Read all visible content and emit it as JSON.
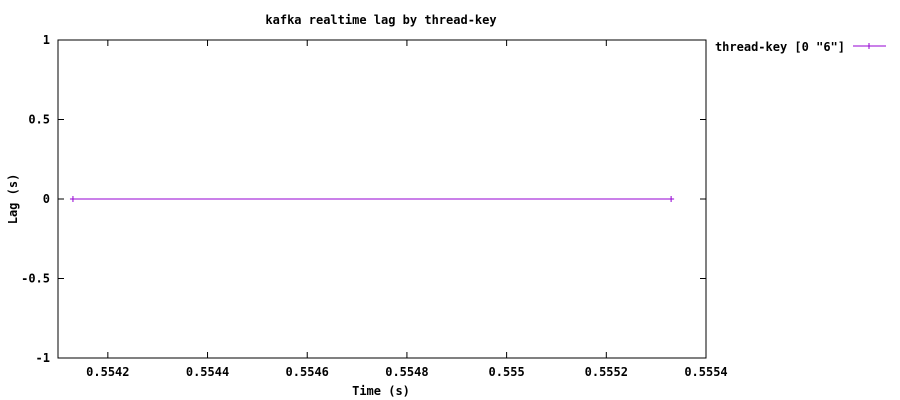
{
  "chart_data": {
    "type": "line",
    "title": "kafka realtime lag by thread-key",
    "xlabel": "Time (s)",
    "ylabel": "Lag (s)",
    "xlim": [
      0.5541,
      0.5554
    ],
    "ylim": [
      -1,
      1
    ],
    "x_ticks": [
      {
        "value": 0.5542,
        "label": "0.5542"
      },
      {
        "value": 0.5544,
        "label": "0.5544"
      },
      {
        "value": 0.5546,
        "label": "0.5546"
      },
      {
        "value": 0.5548,
        "label": "0.5548"
      },
      {
        "value": 0.555,
        "label": "0.555"
      },
      {
        "value": 0.5552,
        "label": "0.5552"
      },
      {
        "value": 0.5554,
        "label": "0.5554"
      }
    ],
    "y_ticks": [
      {
        "value": 1,
        "label": "1"
      },
      {
        "value": 0.5,
        "label": "0.5"
      },
      {
        "value": 0,
        "label": "0"
      },
      {
        "value": -0.5,
        "label": "-0.5"
      },
      {
        "value": -1,
        "label": "-1"
      }
    ],
    "legend_position": "outside-top-right",
    "series": [
      {
        "name": "thread-key [0 \"6\"]",
        "color": "#9400d3",
        "x": [
          0.55413,
          0.55533
        ],
        "y": [
          0,
          0
        ]
      }
    ]
  }
}
